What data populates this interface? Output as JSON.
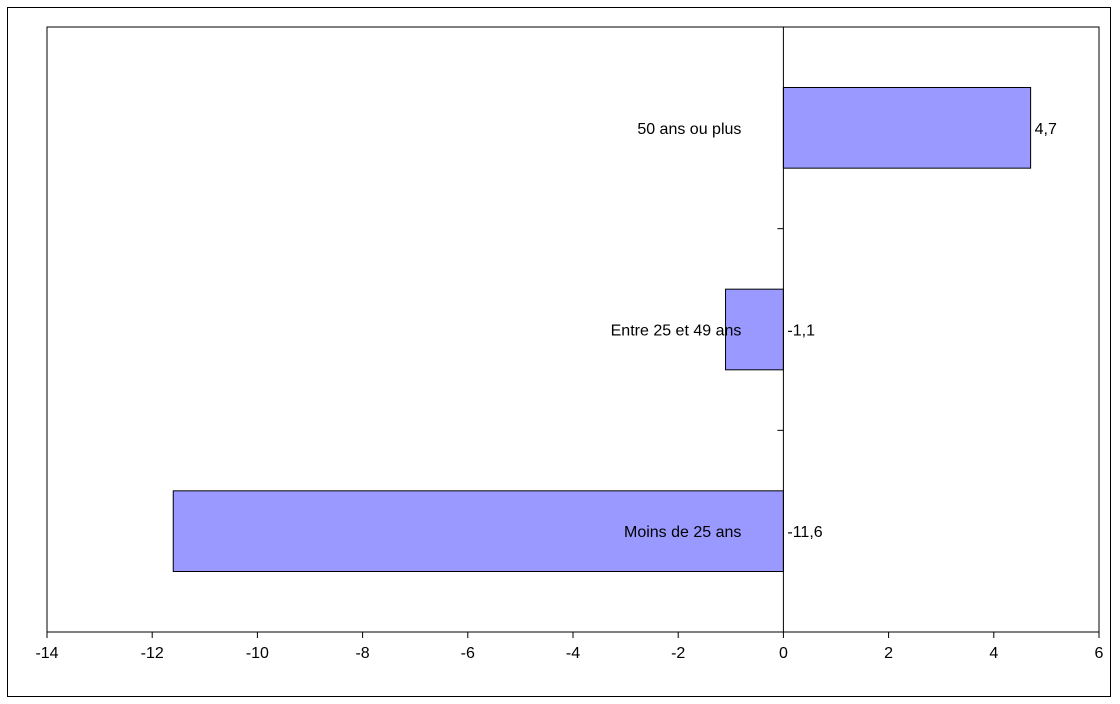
{
  "chart_data": {
    "type": "bar",
    "orientation": "horizontal",
    "categories": [
      "50 ans ou plus",
      "Entre 25 et 49 ans",
      "Moins de 25 ans"
    ],
    "values": [
      4.7,
      -1.1,
      -11.6
    ],
    "value_labels": [
      "4,7",
      "-1,1",
      "-11,6"
    ],
    "xlim": [
      -14,
      6
    ],
    "x_ticks": [
      -14,
      -12,
      -10,
      -8,
      -6,
      -4,
      -2,
      0,
      2,
      4,
      6
    ],
    "x_tick_labels": [
      "-14",
      "-12",
      "-10",
      "-8",
      "-6",
      "-4",
      "-2",
      "0",
      "2",
      "4",
      "6"
    ],
    "grid": false,
    "legend": "none",
    "bar_color": "#9999ff",
    "bar_edge_color": "#000000"
  }
}
